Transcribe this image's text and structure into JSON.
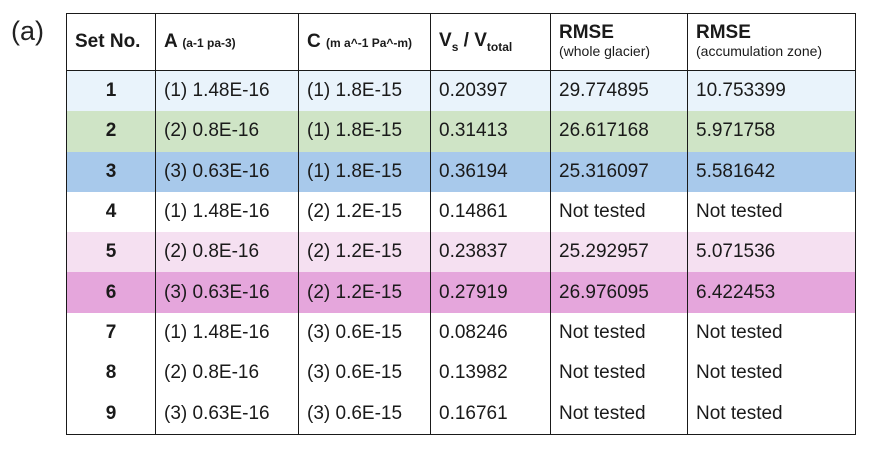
{
  "panel_label": "(a)",
  "header": {
    "set_no": "Set No.",
    "a_main": "A",
    "a_unit": "(a-1 pa-3)",
    "c_main": "C",
    "c_unit": "(m a^-1 Pa^-m)",
    "vs_main": "V",
    "vs_sub": "s",
    "vs_sep": " / V",
    "vs_sub2": "total",
    "rmse_whole_title": "RMSE",
    "rmse_whole_note": "(whole glacier)",
    "rmse_acc_title": "RMSE",
    "rmse_acc_note": "(accumulation zone)"
  },
  "row_colors": [
    "#e9f3fb",
    "#cfe4c6",
    "#a8c9eb",
    "#ffffff",
    "#f5e0f1",
    "#e5a6dc",
    "#ffffff",
    "#ffffff",
    "#ffffff"
  ],
  "rows": [
    [
      "1",
      "(1) 1.48E-16",
      "(1) 1.8E-15",
      "0.20397",
      "29.774895",
      "10.753399"
    ],
    [
      "2",
      "(2) 0.8E-16",
      "(1) 1.8E-15",
      "0.31413",
      "26.617168",
      "5.971758"
    ],
    [
      "3",
      "(3) 0.63E-16",
      "(1) 1.8E-15",
      "0.36194",
      "25.316097",
      "5.581642"
    ],
    [
      "4",
      "(1) 1.48E-16",
      "(2) 1.2E-15",
      "0.14861",
      "Not tested",
      "Not tested"
    ],
    [
      "5",
      "(2) 0.8E-16",
      "(2) 1.2E-15",
      "0.23837",
      "25.292957",
      "5.071536"
    ],
    [
      "6",
      "(3) 0.63E-16",
      "(2) 1.2E-15",
      "0.27919",
      "26.976095",
      "6.422453"
    ],
    [
      "7",
      "(1) 1.48E-16",
      "(3) 0.6E-15",
      "0.08246",
      "Not tested",
      "Not tested"
    ],
    [
      "8",
      "(2) 0.8E-16",
      "(3) 0.6E-15",
      "0.13982",
      "Not tested",
      "Not tested"
    ],
    [
      "9",
      "(3) 0.63E-16",
      "(3) 0.6E-15",
      "0.16761",
      "Not tested",
      "Not tested"
    ]
  ]
}
